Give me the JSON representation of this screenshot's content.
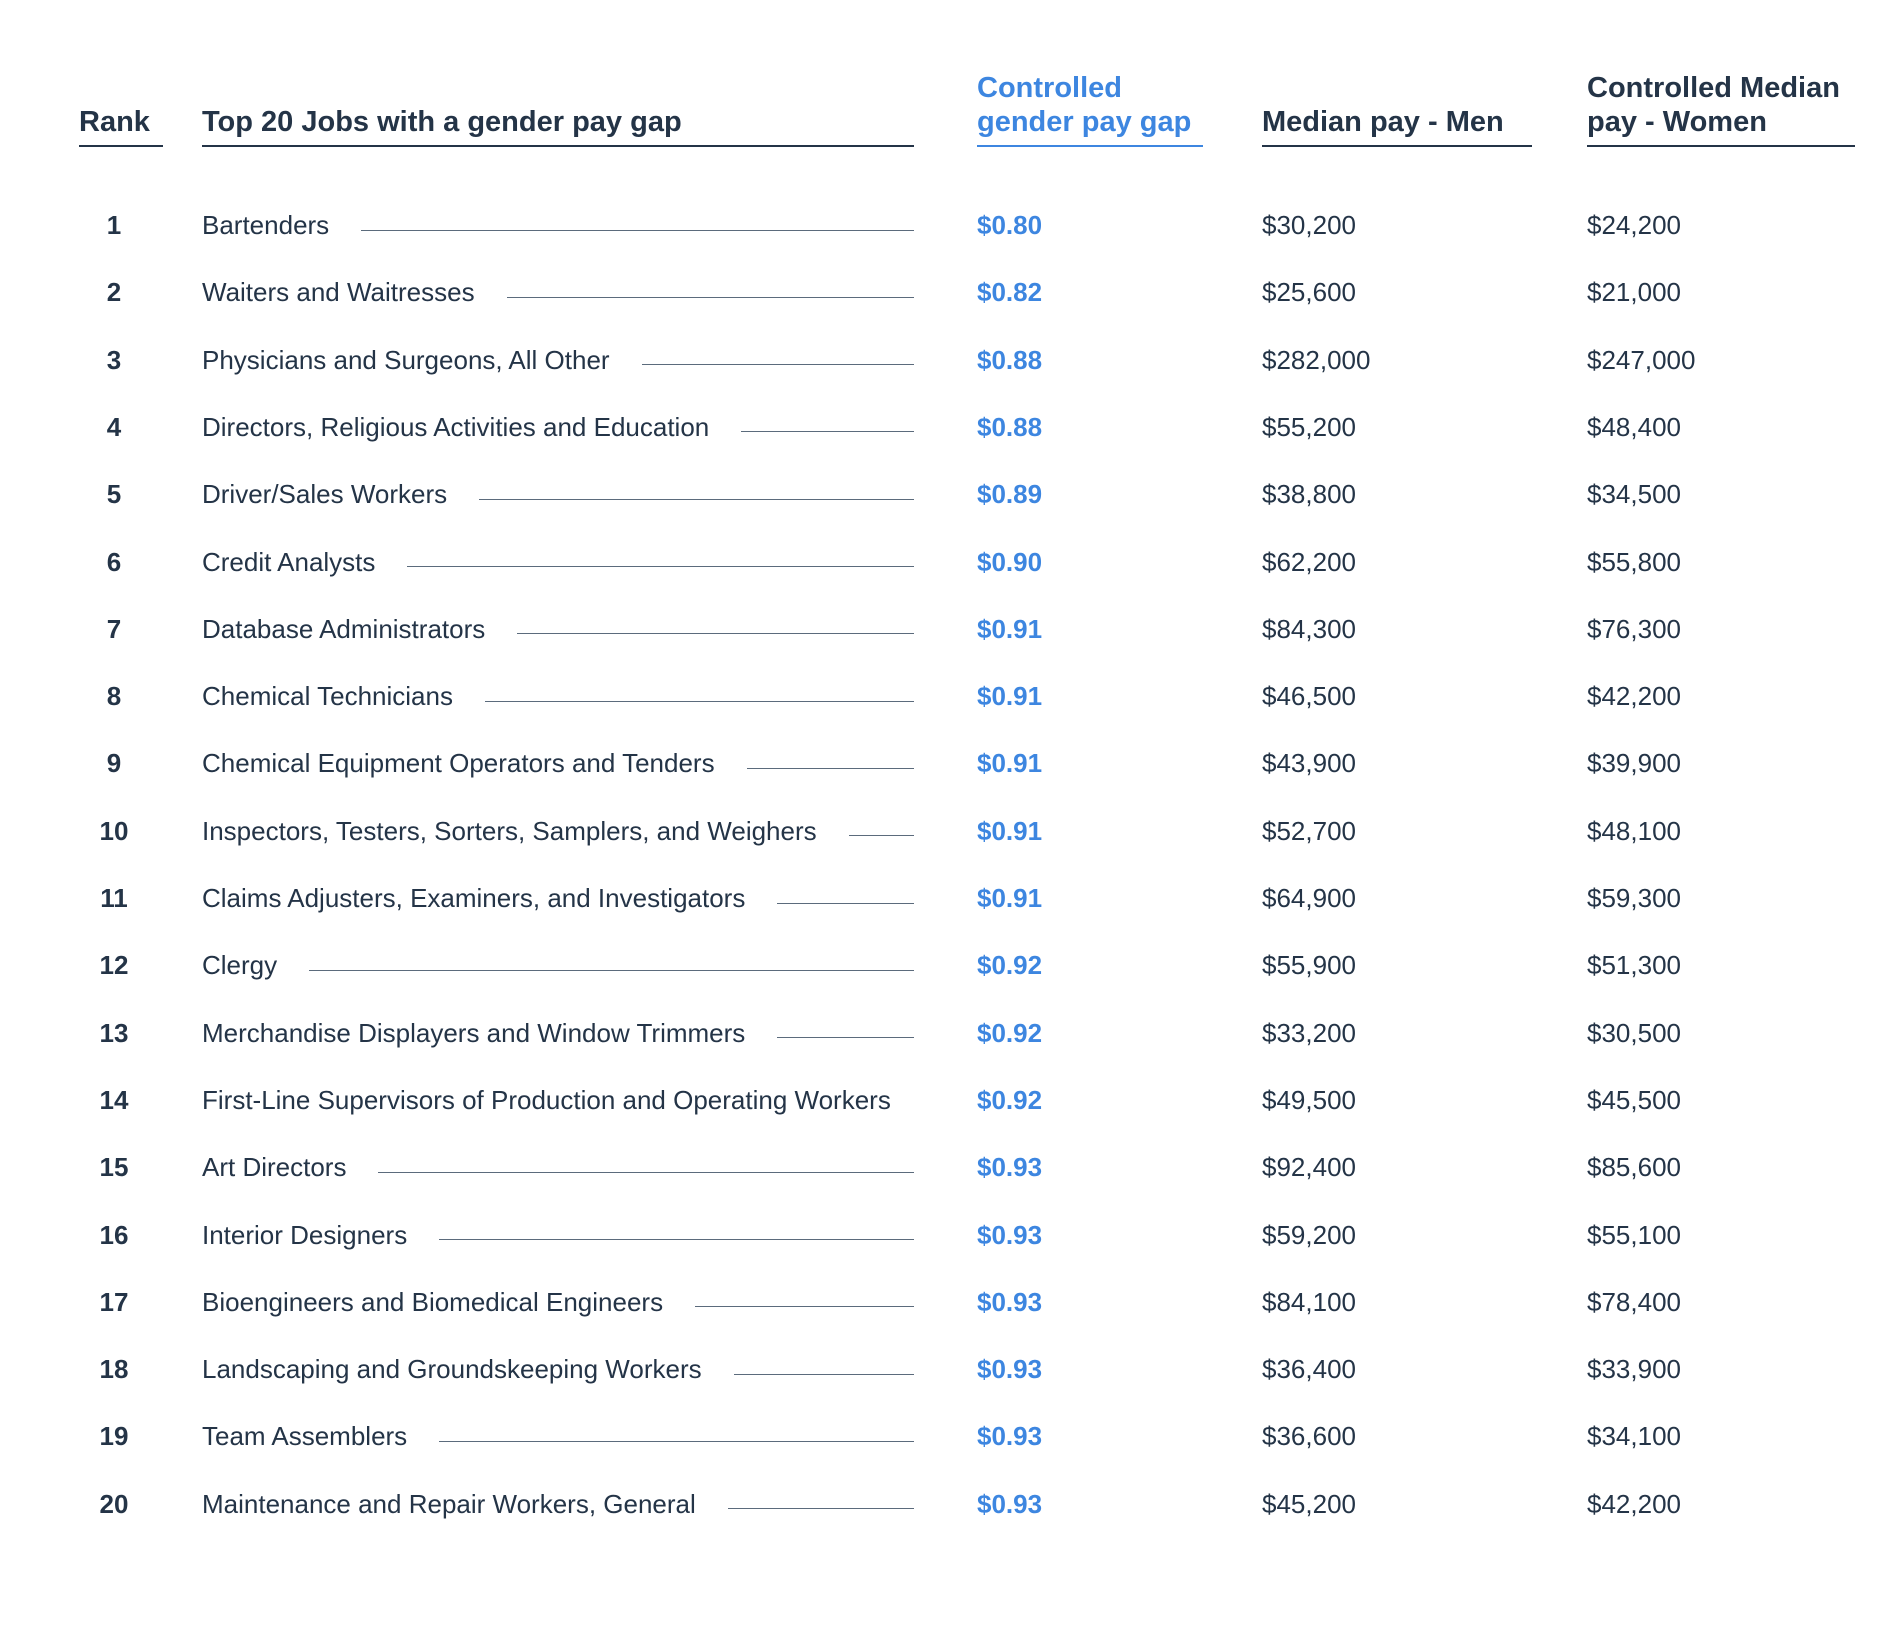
{
  "headers": {
    "rank": "Rank",
    "job": "Top 20 Jobs with a gender pay gap",
    "gap_line1": "Controlled",
    "gap_line2": "gender pay gap",
    "men": "Median pay - Men",
    "women_line1": "Controlled Median",
    "women_line2": "pay - Women"
  },
  "colors": {
    "text": "#243447",
    "accent": "#3d86e0"
  },
  "chart_data": {
    "type": "table",
    "columns": [
      "Rank",
      "Top 20 Jobs with a gender pay gap",
      "Controlled gender pay gap",
      "Median pay - Men",
      "Controlled Median pay - Women"
    ],
    "rows": [
      {
        "rank": "1",
        "job": "Bartenders",
        "gap": "$0.80",
        "men": "$30,200",
        "women": "$24,200"
      },
      {
        "rank": "2",
        "job": "Waiters and Waitresses",
        "gap": "$0.82",
        "men": "$25,600",
        "women": "$21,000"
      },
      {
        "rank": "3",
        "job": "Physicians and Surgeons, All Other",
        "gap": "$0.88",
        "men": "$282,000",
        "women": "$247,000"
      },
      {
        "rank": "4",
        "job": "Directors, Religious Activities and Education",
        "gap": "$0.88",
        "men": "$55,200",
        "women": "$48,400"
      },
      {
        "rank": "5",
        "job": "Driver/Sales Workers",
        "gap": "$0.89",
        "men": "$38,800",
        "women": "$34,500"
      },
      {
        "rank": "6",
        "job": "Credit Analysts",
        "gap": "$0.90",
        "men": "$62,200",
        "women": "$55,800"
      },
      {
        "rank": "7",
        "job": "Database Administrators",
        "gap": "$0.91",
        "men": "$84,300",
        "women": "$76,300"
      },
      {
        "rank": "8",
        "job": "Chemical Technicians",
        "gap": "$0.91",
        "men": "$46,500",
        "women": "$42,200"
      },
      {
        "rank": "9",
        "job": "Chemical Equipment Operators and Tenders",
        "gap": "$0.91",
        "men": "$43,900",
        "women": "$39,900"
      },
      {
        "rank": "10",
        "job": "Inspectors, Testers, Sorters, Samplers, and Weighers",
        "gap": "$0.91",
        "men": "$52,700",
        "women": "$48,100"
      },
      {
        "rank": "11",
        "job": "Claims Adjusters, Examiners, and Investigators",
        "gap": "$0.91",
        "men": "$64,900",
        "women": "$59,300"
      },
      {
        "rank": "12",
        "job": "Clergy",
        "gap": "$0.92",
        "men": "$55,900",
        "women": "$51,300"
      },
      {
        "rank": "13",
        "job": "Merchandise Displayers and Window Trimmers",
        "gap": "$0.92",
        "men": "$33,200",
        "women": "$30,500"
      },
      {
        "rank": "14",
        "job": "First-Line Supervisors of Production and Operating Workers",
        "gap": "$0.92",
        "men": "$49,500",
        "women": "$45,500"
      },
      {
        "rank": "15",
        "job": "Art Directors",
        "gap": "$0.93",
        "men": "$92,400",
        "women": "$85,600"
      },
      {
        "rank": "16",
        "job": "Interior Designers",
        "gap": "$0.93",
        "men": "$59,200",
        "women": "$55,100"
      },
      {
        "rank": "17",
        "job": "Bioengineers and Biomedical Engineers",
        "gap": "$0.93",
        "men": "$84,100",
        "women": "$78,400"
      },
      {
        "rank": "18",
        "job": "Landscaping and Groundskeeping Workers",
        "gap": "$0.93",
        "men": "$36,400",
        "women": "$33,900"
      },
      {
        "rank": "19",
        "job": "Team Assemblers",
        "gap": "$0.93",
        "men": "$36,600",
        "women": "$34,100"
      },
      {
        "rank": "20",
        "job": "Maintenance and Repair Workers, General",
        "gap": "$0.93",
        "men": "$45,200",
        "women": "$42,200"
      }
    ]
  }
}
